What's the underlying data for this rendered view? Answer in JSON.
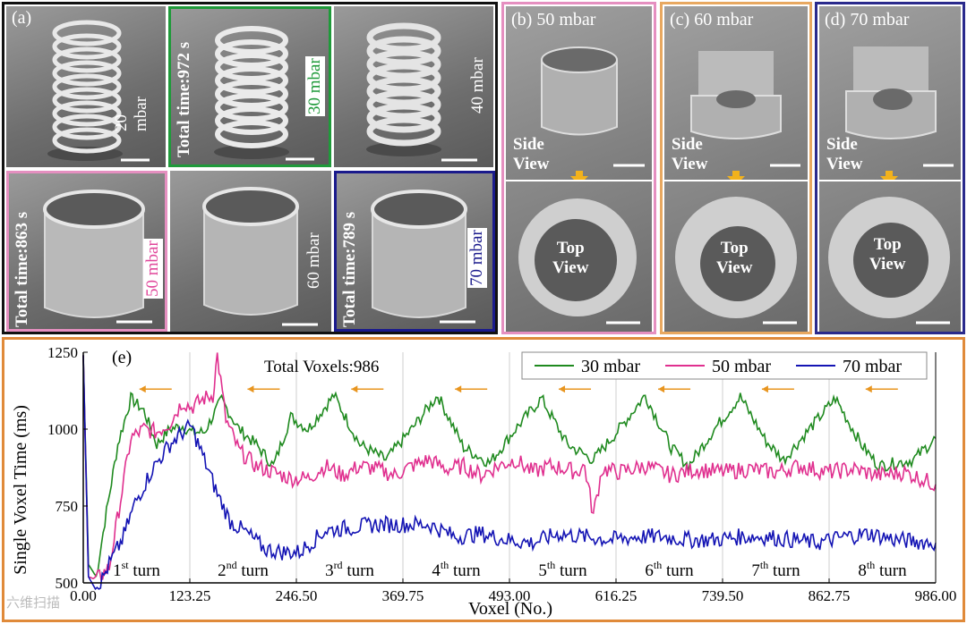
{
  "panel_a": {
    "label": "(a)",
    "cells": [
      {
        "pressure": "20 mbar"
      },
      {
        "pressure": "30 mbar",
        "total_time": "Total time:972 s",
        "color": "#1f9a3a"
      },
      {
        "pressure": "40 mbar"
      },
      {
        "pressure": "50 mbar",
        "total_time": "Total time:863 s",
        "color": "#e0459a"
      },
      {
        "pressure": "60 mbar"
      },
      {
        "pressure": "70 mbar",
        "total_time": "Total time:789 s",
        "color": "#1a1a8c"
      }
    ]
  },
  "panel_b": {
    "label": "(b)",
    "pressure": "50 mbar",
    "color": "#e58fc0"
  },
  "panel_c": {
    "label": "(c)",
    "pressure": "60 mbar",
    "color": "#e8a860"
  },
  "panel_d": {
    "label": "(d)",
    "pressure": "70 mbar",
    "color": "#2a2a8c"
  },
  "views": {
    "side_1": "Side",
    "side_2": "View",
    "top_1": "Top",
    "top_2": "View"
  },
  "watermark": "六维扫描",
  "chart_data": {
    "type": "line",
    "label": "(e)",
    "annotation": "Total Voxels:986",
    "xlabel": "Voxel (No.)",
    "ylabel": "Single Voxel Time (ms)",
    "xlim": [
      0,
      986
    ],
    "ylim": [
      500,
      1250
    ],
    "xticks": [
      "0.00",
      "123.25",
      "246.50",
      "369.75",
      "493.00",
      "616.25",
      "739.50",
      "862.75",
      "986.00"
    ],
    "yticks": [
      "500",
      "750",
      "1000",
      "1250"
    ],
    "turns": [
      {
        "num": "1",
        "sup": "st",
        "rest": " turn"
      },
      {
        "num": "2",
        "sup": "nd",
        "rest": " turn"
      },
      {
        "num": "3",
        "sup": "rd",
        "rest": " turn"
      },
      {
        "num": "4",
        "sup": "th",
        "rest": " turn"
      },
      {
        "num": "5",
        "sup": "th",
        "rest": " turn"
      },
      {
        "num": "6",
        "sup": "th",
        "rest": " turn"
      },
      {
        "num": "7",
        "sup": "th",
        "rest": " turn"
      },
      {
        "num": "8",
        "sup": "th",
        "rest": " turn"
      }
    ],
    "series": [
      {
        "name": "30 mbar",
        "color": "#1f8a1f",
        "x": [
          0,
          6,
          15,
          25,
          40,
          55,
          70,
          85,
          100,
          115,
          125,
          140,
          160,
          180,
          200,
          220,
          240,
          260,
          290,
          320,
          350,
          380,
          410,
          440,
          470,
          500,
          530,
          560,
          590,
          620,
          650,
          680,
          700,
          730,
          760,
          790,
          810,
          840,
          870,
          900,
          920,
          960,
          986
        ],
        "y": [
          1240,
          560,
          520,
          700,
          950,
          1100,
          1060,
          950,
          1000,
          1010,
          990,
          990,
          1095,
          1000,
          950,
          880,
          1040,
          1000,
          1110,
          950,
          900,
          1000,
          1110,
          940,
          890,
          1000,
          1100,
          950,
          900,
          1000,
          1110,
          940,
          880,
          1000,
          1105,
          960,
          900,
          1000,
          1100,
          950,
          880,
          900,
          970
        ]
      },
      {
        "name": "50 mbar",
        "color": "#e0308f",
        "x": [
          0,
          6,
          15,
          30,
          45,
          55,
          70,
          85,
          100,
          115,
          125,
          140,
          150,
          155,
          165,
          180,
          200,
          220,
          240,
          260,
          280,
          300,
          320,
          340,
          360,
          380,
          400,
          420,
          440,
          460,
          480,
          500,
          520,
          540,
          560,
          570,
          580,
          590,
          600,
          620,
          650,
          680,
          710,
          740,
          770,
          800,
          830,
          860,
          890,
          920,
          950,
          986
        ],
        "y": [
          1240,
          520,
          510,
          550,
          800,
          970,
          1000,
          990,
          1020,
          1090,
          1070,
          1100,
          1110,
          1240,
          1030,
          930,
          880,
          860,
          840,
          840,
          880,
          850,
          880,
          870,
          850,
          880,
          900,
          870,
          880,
          850,
          880,
          900,
          860,
          880,
          870,
          860,
          880,
          720,
          870,
          860,
          880,
          850,
          870,
          860,
          870,
          860,
          880,
          860,
          870,
          850,
          860,
          820
        ]
      },
      {
        "name": "70 mbar",
        "color": "#1414b4",
        "x": [
          0,
          6,
          12,
          20,
          30,
          45,
          60,
          80,
          100,
          115,
          125,
          140,
          155,
          170,
          190,
          210,
          230,
          250,
          280,
          310,
          340,
          370,
          400,
          430,
          460,
          490,
          520,
          550,
          580,
          610,
          640,
          670,
          700,
          730,
          760,
          790,
          820,
          850,
          880,
          910,
          940,
          986
        ],
        "y": [
          1240,
          520,
          490,
          500,
          560,
          640,
          760,
          870,
          950,
          990,
          1010,
          900,
          790,
          700,
          660,
          610,
          600,
          600,
          670,
          680,
          690,
          690,
          690,
          650,
          660,
          640,
          630,
          660,
          650,
          640,
          650,
          650,
          640,
          640,
          650,
          650,
          640,
          630,
          650,
          660,
          640,
          630
        ]
      }
    ],
    "legend_position": "top-right"
  }
}
